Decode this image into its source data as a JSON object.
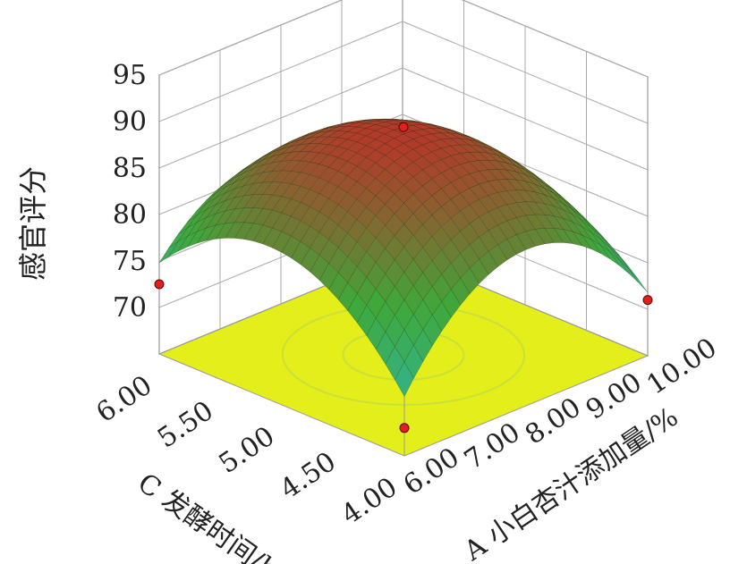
{
  "chart_data": {
    "type": "surface3d",
    "zlabel": "感官评分",
    "xlabel": "A 小白杏汁添加量/%",
    "ylabel": "C 发酵时间/h",
    "x_ticks": [
      "6.00",
      "7.00",
      "8.00",
      "9.00",
      "10.00"
    ],
    "y_ticks": [
      "4.00",
      "4.50",
      "5.00",
      "5.50",
      "6.00"
    ],
    "z_ticks": [
      "70",
      "75",
      "80",
      "85",
      "90",
      "95"
    ],
    "xlim": [
      6,
      10
    ],
    "ylim": [
      4,
      6
    ],
    "zlim": [
      65,
      95
    ],
    "z_values": [
      {
        "A": 8,
        "C": 5,
        "score": 89.5
      },
      {
        "A": 6,
        "C": 4,
        "score": 68
      },
      {
        "A": 6,
        "C": 6,
        "score": 72.5
      },
      {
        "A": 10,
        "C": 4,
        "score": 71
      },
      {
        "A": 10,
        "C": 6,
        "score": 65
      }
    ],
    "surface_colors": {
      "low": "#2fb9b0",
      "mid": "#3fa83a",
      "high": "#b23a2a",
      "floor": "#e3ee1a"
    },
    "design_points": [
      {
        "A": 8,
        "C": 5,
        "score": 89.5
      },
      {
        "A": 6,
        "C": 4,
        "score": 68
      },
      {
        "A": 6,
        "C": 6,
        "score": 72.5
      },
      {
        "A": 10,
        "C": 4,
        "score": 71
      }
    ]
  }
}
